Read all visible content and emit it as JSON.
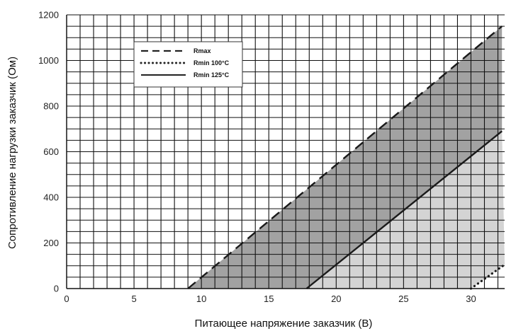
{
  "chart_data": {
    "type": "line",
    "title": "",
    "xlabel": "Питающее напряжение заказчик (В)",
    "ylabel": "Сопротивление нагрузки заказчик (Ом)",
    "xlim": [
      0,
      32.5
    ],
    "ylim": [
      0,
      1200
    ],
    "x_ticks": [
      0,
      5,
      10,
      15,
      20,
      25,
      30
    ],
    "y_ticks": [
      0,
      200,
      400,
      600,
      800,
      1000,
      1200
    ],
    "x_minor_step": 1,
    "y_minor_step": 50,
    "grid": true,
    "legend": {
      "placement": "top-left"
    },
    "series": [
      {
        "name": "Rmax",
        "style": "dashed",
        "x": [
          9,
          32.3
        ],
        "y": [
          0,
          1150
        ]
      },
      {
        "name": "Rmin 100°C",
        "style": "dotted",
        "x": [
          30,
          32.5
        ],
        "y": [
          0,
          105
        ]
      },
      {
        "name": "Rmin 125°C",
        "style": "solid",
        "x": [
          17.8,
          32.3
        ],
        "y": [
          0,
          690
        ]
      }
    ],
    "shaded_regions": [
      {
        "label": "",
        "color": "#a2a2a2",
        "between": [
          "Rmax",
          "Rmin 125°C"
        ]
      },
      {
        "label": "",
        "color": "#d4d4d4",
        "between": [
          "Rmin 125°C",
          "Rmin 100°C"
        ]
      }
    ]
  }
}
